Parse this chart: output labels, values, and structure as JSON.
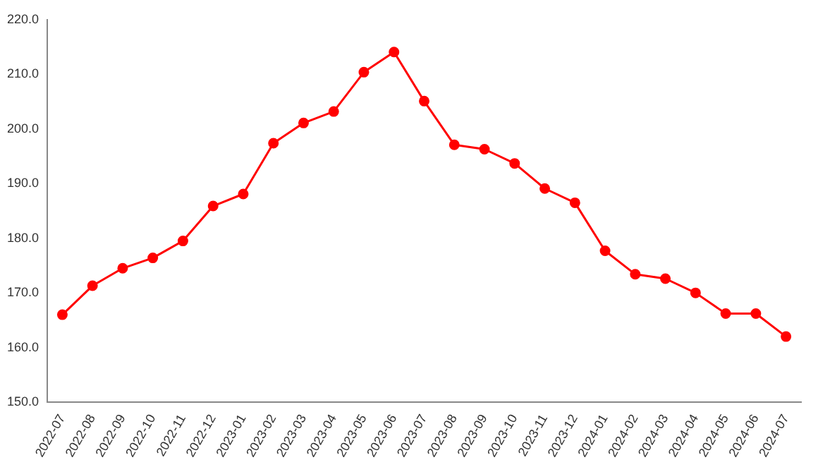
{
  "chart_data": {
    "type": "line",
    "categories": [
      "2022-07",
      "2022-08",
      "2022-09",
      "2022-10",
      "2022-11",
      "2022-12",
      "2023-01",
      "2023-02",
      "2023-03",
      "2023-04",
      "2023-05",
      "2023-06",
      "2023-07",
      "2023-08",
      "2023-09",
      "2023-10",
      "2023-11",
      "2023-12",
      "2024-01",
      "2024-02",
      "2024-03",
      "2024-04",
      "2024-05",
      "2024-06",
      "2024-07"
    ],
    "series": [
      {
        "color": "#ff0000",
        "values": [
          166.0,
          171.3,
          174.5,
          176.4,
          179.5,
          185.9,
          188.1,
          197.4,
          201.1,
          203.2,
          210.4,
          214.1,
          205.1,
          197.1,
          196.3,
          193.7,
          189.1,
          186.5,
          177.7,
          173.4,
          172.6,
          170.0,
          166.2,
          166.2,
          162.0
        ]
      }
    ],
    "ylim": [
      150,
      220
    ],
    "yticks": [
      {
        "value": 150,
        "label": "150.0"
      },
      {
        "value": 160,
        "label": "160.0"
      },
      {
        "value": 170,
        "label": "170.0"
      },
      {
        "value": 180,
        "label": "180.0"
      },
      {
        "value": 190,
        "label": "190.0"
      },
      {
        "value": 200,
        "label": "200.0"
      },
      {
        "value": 210,
        "label": "210.0"
      },
      {
        "value": 220,
        "label": "220.0"
      }
    ],
    "marker": "circle",
    "line_style": "solid",
    "grid": false,
    "legend": false
  }
}
